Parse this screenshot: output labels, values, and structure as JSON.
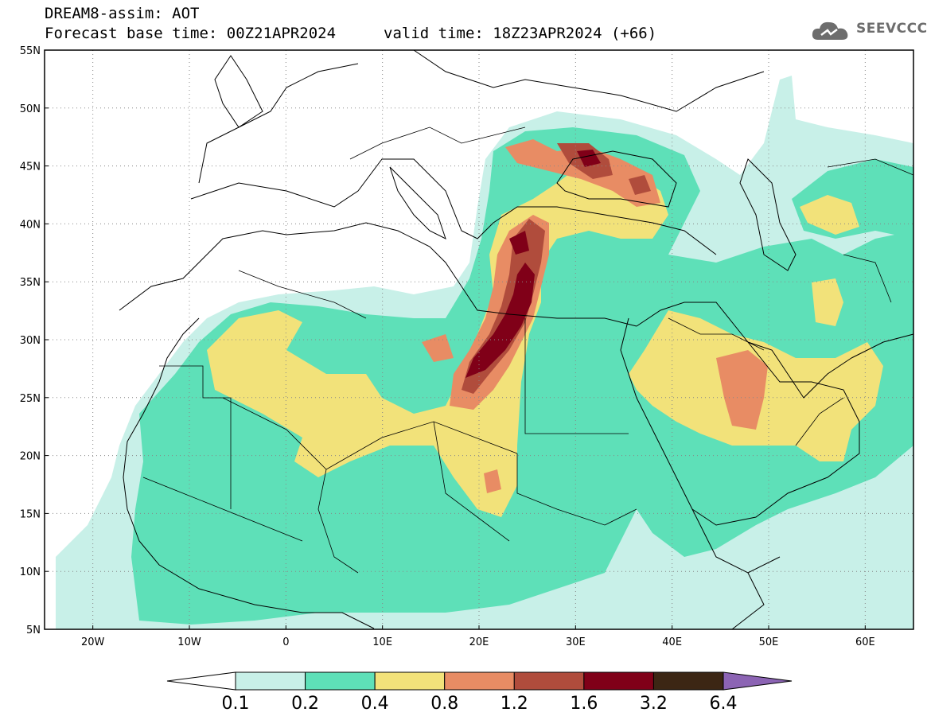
{
  "header": {
    "title": "DREAM8-assim: AOT",
    "base_time": "Forecast base time: 00Z21APR2024",
    "valid_time": "valid time: 18Z23APR2024 (+66)"
  },
  "logo": {
    "text": "SEEVCCC",
    "icon": "cloud-icon"
  },
  "map": {
    "lat_labels": [
      "55N",
      "50N",
      "45N",
      "40N",
      "35N",
      "30N",
      "25N",
      "20N",
      "15N",
      "10N",
      "5N"
    ],
    "lon_labels": [
      "20W",
      "10W",
      "0",
      "10E",
      "20E",
      "30E",
      "40E",
      "50E",
      "60E"
    ],
    "lat_range": [
      5,
      55
    ],
    "lon_range": [
      -25,
      65
    ],
    "grid": "dotted"
  },
  "colorbar": {
    "levels": [
      "0.1",
      "0.2",
      "0.4",
      "0.8",
      "1.2",
      "1.6",
      "3.2",
      "6.4"
    ],
    "colors": [
      "#ffffff",
      "#c8f0e8",
      "#5ee0b8",
      "#f2e27a",
      "#e88c64",
      "#b04c3c",
      "#800018",
      "#3c2614",
      "#8c64b4"
    ]
  }
}
